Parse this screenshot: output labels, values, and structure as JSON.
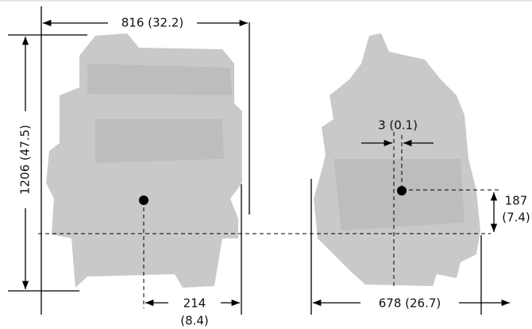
{
  "dimensions": {
    "overall_length": "816 (32.2)",
    "overall_height": "1206 (47.5)",
    "cog_offset_rear": [
      "214",
      "(8.4)"
    ],
    "cog_offset_lateral": "3 (0.1)",
    "cog_height": [
      "187",
      "(7.4)"
    ],
    "overall_width": "678 (26.7)"
  }
}
